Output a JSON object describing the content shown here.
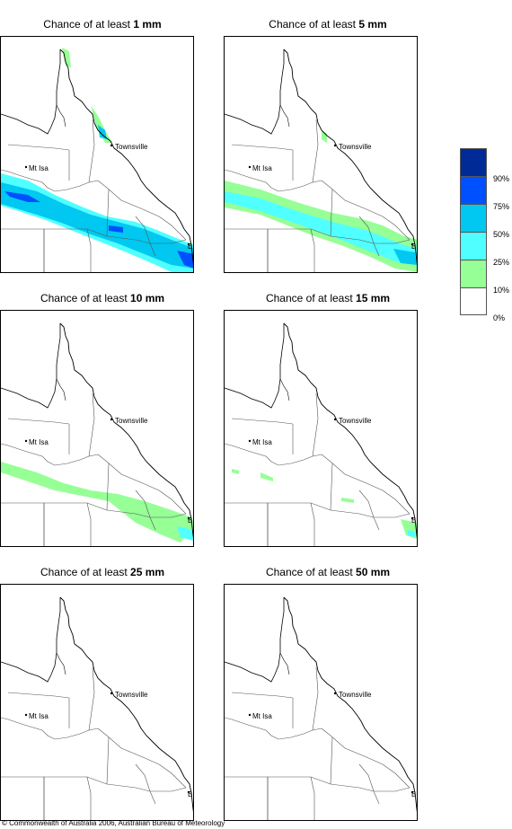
{
  "panels": [
    {
      "prefix": "Chance of at least ",
      "amount": "1 mm"
    },
    {
      "prefix": "Chance of at least ",
      "amount": "5 mm"
    },
    {
      "prefix": "Chance of at least ",
      "amount": "10 mm"
    },
    {
      "prefix": "Chance of at least ",
      "amount": "15 mm"
    },
    {
      "prefix": "Chance of at least ",
      "amount": "25 mm"
    },
    {
      "prefix": "Chance of at least ",
      "amount": "50 mm"
    }
  ],
  "places": {
    "townsville": "Townsville",
    "mt_isa": "Mt Isa",
    "bris": "BRIS"
  },
  "legend": {
    "labels": [
      "90%",
      "75%",
      "50%",
      "25%",
      "10%",
      "0%"
    ],
    "colors": [
      "#002a96",
      "#0050ff",
      "#00c8f0",
      "#50ffff",
      "#96ff96",
      "#ffffff"
    ]
  },
  "copyright": "© Commonwealth of Australia 2006, Australian Bureau of Meteorology"
}
